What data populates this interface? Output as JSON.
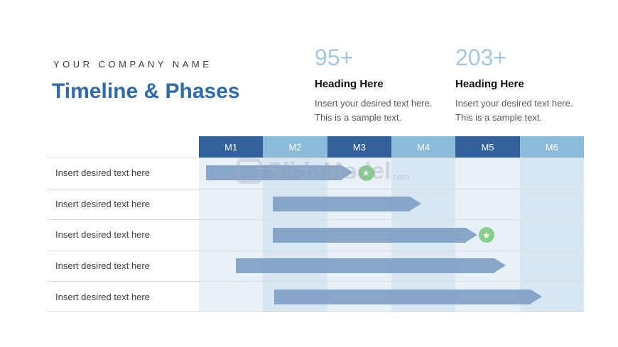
{
  "header": {
    "company_name": "YOUR COMPANY NAME",
    "title": "Timeline & Phases"
  },
  "stats": [
    {
      "value": "95+",
      "heading": "Heading Here",
      "text": "Insert your desired text here. This is a sample text."
    },
    {
      "value": "203+",
      "heading": "Heading Here",
      "text": "Insert your desired text here. This is a sample text."
    }
  ],
  "watermark": {
    "text": "SlideModel",
    "suffix": ".com"
  },
  "colors": {
    "title_blue": "#2F6BA8",
    "stat_number_blue": "#A4C7DD",
    "header_dark": "#31609B",
    "header_light": "#8CBBDA",
    "stripe_light": "#E9F1F8",
    "stripe_blue": "#D8E6F2",
    "bar_blue": "#7E9DC3",
    "milestone_green": "#86CE89"
  },
  "chart_data": {
    "type": "gantt",
    "title": "Timeline & Phases",
    "columns": [
      "M1",
      "M2",
      "M3",
      "M4",
      "M5",
      "M6"
    ],
    "column_unit": "month",
    "legend_position": "none",
    "rows": [
      {
        "label": "Insert desired text here",
        "start": 1.11,
        "end": 3.4,
        "milestone": 3.61
      },
      {
        "label": "Insert desired text here",
        "start": 2.15,
        "end": 4.46,
        "milestone": null
      },
      {
        "label": "Insert desired text here",
        "start": 2.15,
        "end": 5.34,
        "milestone": 5.48
      },
      {
        "label": "Insert desired text here",
        "start": 1.58,
        "end": 5.78,
        "milestone": null
      },
      {
        "label": "Insert desired text here",
        "start": 2.17,
        "end": 6.35,
        "milestone": null
      }
    ],
    "milestone_icon": "star"
  }
}
